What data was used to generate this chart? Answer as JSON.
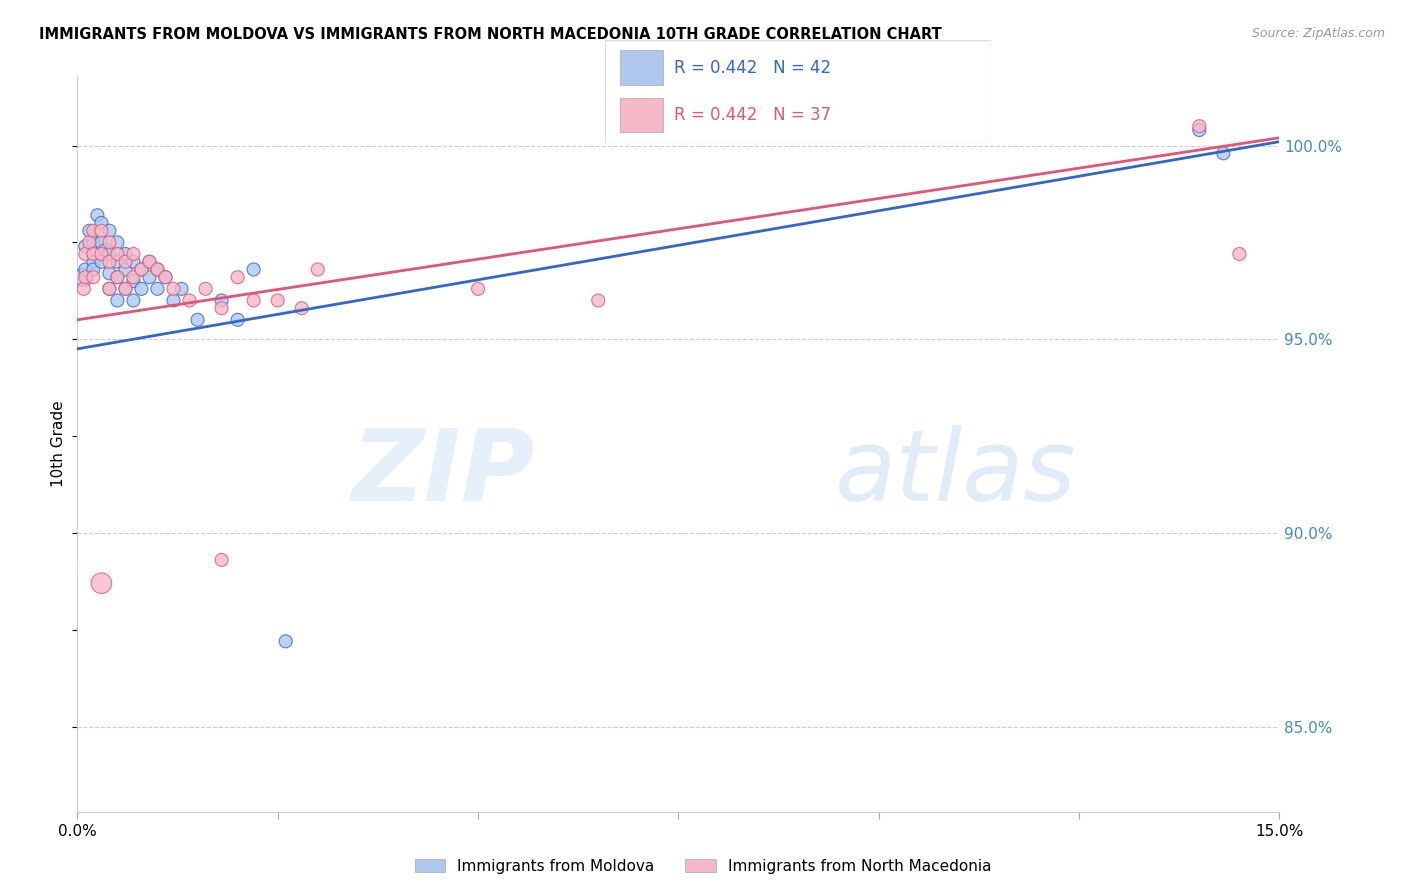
{
  "title": "IMMIGRANTS FROM MOLDOVA VS IMMIGRANTS FROM NORTH MACEDONIA 10TH GRADE CORRELATION CHART",
  "source": "Source: ZipAtlas.com",
  "ylabel": "10th Grade",
  "legend_label1": "Immigrants from Moldova",
  "legend_label2": "Immigrants from North Macedonia",
  "R1": 0.442,
  "N1": 42,
  "R2": 0.442,
  "N2": 37,
  "color1": "#aec8ee",
  "color2": "#f5b8c8",
  "line_color1": "#3366cc",
  "line_color2": "#e05578",
  "xmin": 0.0,
  "xmax": 0.15,
  "ymin": 0.828,
  "ymax": 1.018,
  "yticks": [
    0.85,
    0.9,
    0.95,
    1.0
  ],
  "ytick_labels": [
    "85.0%",
    "90.0%",
    "95.0%",
    "100.0%"
  ],
  "xtick_vals": [
    0.0,
    0.025,
    0.05,
    0.075,
    0.1,
    0.125,
    0.15
  ],
  "xtick_labels": [
    "0.0%",
    "",
    "",
    "",
    "",
    "",
    "15.0%"
  ],
  "moldova_x": [
    0.0008,
    0.001,
    0.001,
    0.0015,
    0.002,
    0.002,
    0.002,
    0.0025,
    0.003,
    0.003,
    0.003,
    0.0035,
    0.004,
    0.004,
    0.004,
    0.004,
    0.005,
    0.005,
    0.005,
    0.005,
    0.006,
    0.006,
    0.006,
    0.007,
    0.007,
    0.007,
    0.008,
    0.008,
    0.009,
    0.009,
    0.01,
    0.01,
    0.011,
    0.012,
    0.013,
    0.015,
    0.018,
    0.02,
    0.022,
    0.026,
    0.14,
    0.143
  ],
  "moldova_y": [
    0.966,
    0.974,
    0.968,
    0.978,
    0.975,
    0.97,
    0.968,
    0.982,
    0.98,
    0.975,
    0.97,
    0.973,
    0.978,
    0.972,
    0.967,
    0.963,
    0.975,
    0.97,
    0.966,
    0.96,
    0.972,
    0.968,
    0.963,
    0.97,
    0.965,
    0.96,
    0.968,
    0.963,
    0.97,
    0.966,
    0.968,
    0.963,
    0.966,
    0.96,
    0.963,
    0.955,
    0.96,
    0.955,
    0.968,
    0.872,
    1.004,
    0.998
  ],
  "moldova_sizes": [
    80,
    40,
    40,
    40,
    40,
    40,
    40,
    40,
    40,
    40,
    40,
    40,
    40,
    40,
    40,
    40,
    40,
    40,
    40,
    40,
    40,
    40,
    40,
    40,
    40,
    40,
    40,
    40,
    40,
    40,
    40,
    40,
    40,
    40,
    40,
    40,
    40,
    40,
    40,
    40,
    40,
    40
  ],
  "macedonia_x": [
    0.0008,
    0.001,
    0.001,
    0.0015,
    0.002,
    0.002,
    0.002,
    0.003,
    0.003,
    0.004,
    0.004,
    0.004,
    0.005,
    0.005,
    0.006,
    0.006,
    0.007,
    0.007,
    0.008,
    0.009,
    0.01,
    0.011,
    0.012,
    0.014,
    0.016,
    0.018,
    0.02,
    0.022,
    0.025,
    0.028,
    0.03,
    0.05,
    0.065,
    0.14,
    0.145,
    0.003,
    0.018
  ],
  "macedonia_y": [
    0.963,
    0.972,
    0.966,
    0.975,
    0.978,
    0.972,
    0.966,
    0.978,
    0.972,
    0.975,
    0.97,
    0.963,
    0.972,
    0.966,
    0.97,
    0.963,
    0.972,
    0.966,
    0.968,
    0.97,
    0.968,
    0.966,
    0.963,
    0.96,
    0.963,
    0.958,
    0.966,
    0.96,
    0.96,
    0.958,
    0.968,
    0.963,
    0.96,
    1.005,
    0.972,
    0.887,
    0.893
  ],
  "macedonia_sizes": [
    40,
    40,
    40,
    40,
    40,
    40,
    40,
    40,
    40,
    40,
    40,
    40,
    40,
    40,
    40,
    40,
    40,
    40,
    40,
    40,
    40,
    40,
    40,
    40,
    40,
    40,
    40,
    40,
    40,
    40,
    40,
    40,
    40,
    40,
    40,
    100,
    40
  ],
  "line1_x": [
    0.0,
    0.15
  ],
  "line1_y": [
    0.9475,
    1.001
  ],
  "line2_x": [
    0.0,
    0.15
  ],
  "line2_y": [
    0.955,
    1.002
  ]
}
